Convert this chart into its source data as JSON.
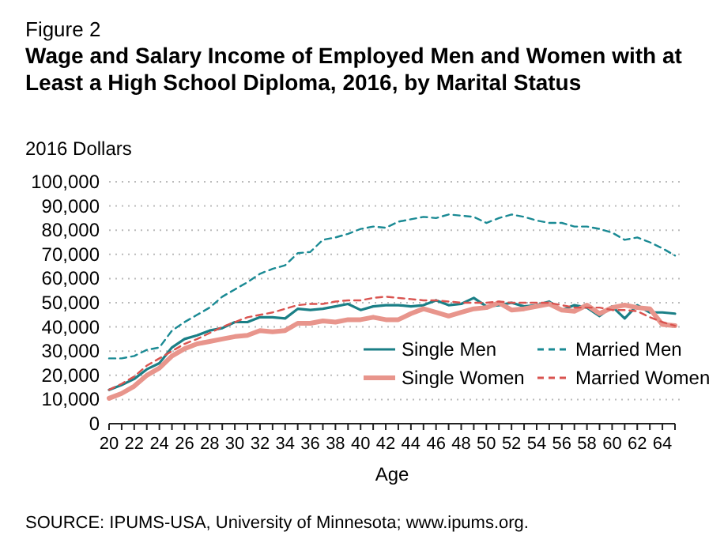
{
  "chart_data": {
    "type": "line",
    "title": "Wage and Salary Income of Employed Men and Women with at Least a High School Diploma, 2016, by Marital Status",
    "subtitle": "Figure 2",
    "xlabel": "Age",
    "ylabel": "2016 Dollars",
    "annotations": [
      "SOURCE: IPUMS-USA, University of Minnesota; www.ipums.org."
    ],
    "x": [
      20,
      21,
      22,
      23,
      24,
      25,
      26,
      27,
      28,
      29,
      30,
      31,
      32,
      33,
      34,
      35,
      36,
      37,
      38,
      39,
      40,
      41,
      42,
      43,
      44,
      45,
      46,
      47,
      48,
      49,
      50,
      51,
      52,
      53,
      54,
      55,
      56,
      57,
      58,
      59,
      60,
      61,
      62,
      63,
      64,
      65
    ],
    "series": [
      {
        "name": "Single Men",
        "color": "#1a7f86",
        "line_style": "solid",
        "values": [
          14000,
          16000,
          18500,
          22500,
          25000,
          31500,
          35000,
          36500,
          38500,
          39500,
          42000,
          42000,
          44000,
          44000,
          43500,
          47500,
          47000,
          47500,
          48500,
          49500,
          47000,
          48500,
          49000,
          49000,
          48500,
          49000,
          51000,
          49000,
          49500,
          52000,
          48500,
          49000,
          50000,
          48500,
          49000,
          50500,
          47000,
          49000,
          48000,
          44500,
          48500,
          43500,
          49000,
          46000,
          46000,
          45500
        ]
      },
      {
        "name": "Married Men",
        "color": "#1a8a94",
        "line_style": "dashed",
        "values": [
          27000,
          27000,
          28000,
          30500,
          31500,
          38500,
          42000,
          45000,
          48000,
          52500,
          55500,
          58500,
          62000,
          64000,
          65500,
          70500,
          71000,
          76000,
          77000,
          78500,
          80500,
          81500,
          81000,
          83500,
          84500,
          85500,
          85000,
          86500,
          86000,
          85500,
          83000,
          85000,
          86500,
          85500,
          84000,
          83000,
          83000,
          81500,
          81500,
          80500,
          79000,
          76000,
          77000,
          75000,
          72500,
          69500
        ]
      },
      {
        "name": "Single Women",
        "color": "#e8958c",
        "line_style": "solid",
        "values": [
          10500,
          12500,
          15500,
          20000,
          23000,
          28000,
          31000,
          33000,
          34000,
          35000,
          36000,
          36500,
          38500,
          38000,
          38500,
          41500,
          41500,
          42500,
          42000,
          43000,
          43000,
          44000,
          43000,
          43000,
          45500,
          47500,
          46000,
          44500,
          46000,
          47500,
          48000,
          50000,
          47000,
          47500,
          48500,
          49500,
          47000,
          46500,
          49000,
          45500,
          48000,
          49000,
          48000,
          47500,
          41000,
          40500
        ]
      },
      {
        "name": "Married Women",
        "color": "#d9534f",
        "line_style": "dashed",
        "values": [
          14000,
          16500,
          19500,
          24000,
          27000,
          30000,
          33000,
          35000,
          37500,
          40000,
          42000,
          44000,
          45000,
          46000,
          47500,
          49000,
          49500,
          49500,
          50500,
          51000,
          51000,
          52000,
          52500,
          52000,
          51500,
          51000,
          51000,
          50500,
          50000,
          50000,
          50000,
          50500,
          50000,
          50000,
          50000,
          50000,
          49000,
          48000,
          48000,
          48000,
          47000,
          47000,
          46500,
          44000,
          42000,
          40500
        ]
      }
    ],
    "xlim": [
      20,
      65
    ],
    "xticks": [
      20,
      {
        "value": 21,
        "label": null
      },
      22,
      {
        "value": 23,
        "label": null
      },
      24,
      {
        "value": 25,
        "label": null
      },
      26,
      {
        "value": 27,
        "label": null
      },
      28,
      {
        "value": 29,
        "label": null
      },
      30,
      {
        "value": 31,
        "label": null
      },
      32,
      {
        "value": 33,
        "label": null
      },
      34,
      {
        "value": 35,
        "label": null
      },
      36,
      {
        "value": 37,
        "label": null
      },
      38,
      {
        "value": 39,
        "label": null
      },
      40,
      {
        "value": 41,
        "label": null
      },
      42,
      {
        "value": 43,
        "label": null
      },
      44,
      {
        "value": 45,
        "label": null
      },
      46,
      {
        "value": 47,
        "label": null
      },
      48,
      {
        "value": 49,
        "label": null
      },
      50,
      {
        "value": 51,
        "label": null
      },
      52,
      {
        "value": 53,
        "label": null
      },
      54,
      {
        "value": 55,
        "label": null
      },
      56,
      {
        "value": 57,
        "label": null
      },
      58,
      {
        "value": 59,
        "label": null
      },
      60,
      {
        "value": 61,
        "label": null
      },
      62,
      {
        "value": 63,
        "label": null
      },
      64,
      {
        "value": 65,
        "label": null
      }
    ],
    "ylim": [
      0,
      100000
    ],
    "yticks": [
      {
        "value": 0,
        "label": "0"
      },
      {
        "value": 10000,
        "label": "10,000"
      },
      {
        "value": 20000,
        "label": "20,000"
      },
      {
        "value": 30000,
        "label": "30,000"
      },
      {
        "value": 40000,
        "label": "40,000"
      },
      {
        "value": 50000,
        "label": "50,000"
      },
      {
        "value": 60000,
        "label": "60,000"
      },
      {
        "value": 70000,
        "label": "70,000"
      },
      {
        "value": 80000,
        "label": "80,000"
      },
      {
        "value": 90000,
        "label": "90,000"
      },
      {
        "value": 100000,
        "label": "100,000"
      }
    ],
    "grid": "y",
    "legend": "bottom right",
    "marker": "none"
  }
}
